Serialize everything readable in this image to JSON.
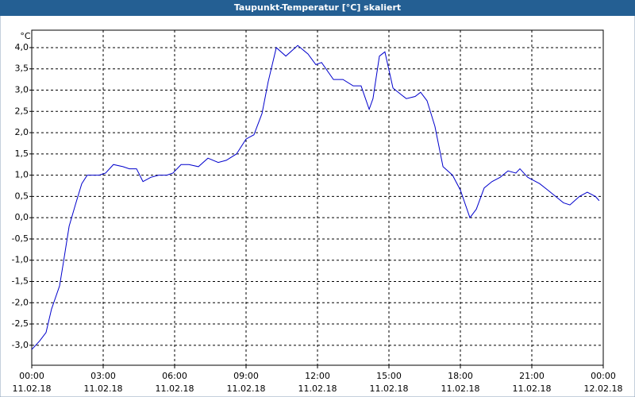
{
  "chart_data": {
    "type": "line",
    "title": "Taupunkt-Temperatur [°C] skaliert",
    "y_unit": "°C",
    "x": [
      0,
      0.33,
      0.6,
      0.83,
      1.17,
      1.33,
      1.57,
      1.83,
      2.1,
      2.33,
      2.83,
      3.1,
      3.43,
      3.83,
      4.1,
      4.4,
      4.67,
      5,
      5.33,
      5.67,
      5.93,
      6.27,
      6.6,
      7,
      7.4,
      7.83,
      8.17,
      8.6,
      9,
      9.33,
      9.67,
      9.93,
      10.27,
      10.67,
      11.17,
      11.6,
      11.93,
      12.17,
      12.67,
      13.07,
      13.5,
      13.83,
      14.17,
      14.33,
      14.6,
      14.83,
      15.17,
      15.5,
      15.73,
      16.1,
      16.33,
      16.6,
      16.93,
      17.27,
      17.67,
      18,
      18.4,
      18.67,
      19,
      19.33,
      19.67,
      20,
      20.33,
      20.5,
      20.83,
      21.33,
      21.67,
      22,
      22.33,
      22.6,
      23,
      23.33,
      23.67,
      23.83
    ],
    "series": [
      {
        "color": "#0000cc",
        "values": [
          -3.1,
          -2.9,
          -2.7,
          -2.15,
          -1.6,
          -1.05,
          -0.2,
          0.3,
          0.8,
          1.0,
          1.0,
          1.05,
          1.25,
          1.2,
          1.15,
          1.15,
          0.85,
          0.95,
          1.0,
          1.0,
          1.05,
          1.25,
          1.25,
          1.2,
          1.4,
          1.3,
          1.35,
          1.5,
          1.85,
          1.95,
          2.45,
          3.2,
          4.0,
          3.8,
          4.05,
          3.85,
          3.6,
          3.65,
          3.25,
          3.25,
          3.1,
          3.1,
          2.55,
          2.8,
          3.8,
          3.9,
          3.05,
          2.9,
          2.8,
          2.85,
          2.95,
          2.75,
          2.15,
          1.2,
          1.0,
          0.65,
          0.0,
          0.2,
          0.7,
          0.85,
          0.95,
          1.1,
          1.05,
          1.15,
          0.95,
          0.8,
          0.65,
          0.5,
          0.35,
          0.3,
          0.5,
          0.6,
          0.5,
          0.4
        ]
      }
    ],
    "xlim": [
      0,
      24
    ],
    "xticks": [
      {
        "value": 0,
        "label": "00:00",
        "date": "11.02.18"
      },
      {
        "value": 3,
        "label": "03:00",
        "date": "11.02.18"
      },
      {
        "value": 6,
        "label": "06:00",
        "date": "11.02.18"
      },
      {
        "value": 9,
        "label": "09:00",
        "date": "11.02.18"
      },
      {
        "value": 12,
        "label": "12:00",
        "date": "11.02.18"
      },
      {
        "value": 15,
        "label": "15:00",
        "date": "11.02.18"
      },
      {
        "value": 18,
        "label": "18:00",
        "date": "11.02.18"
      },
      {
        "value": 21,
        "label": "21:00",
        "date": "11.02.18"
      },
      {
        "value": 24,
        "label": "00:00",
        "date": "12.02.18"
      }
    ],
    "ylim": [
      -3.47,
      4.41
    ],
    "yticks": [
      {
        "value": -3,
        "label": "-3,0"
      },
      {
        "value": -2.5,
        "label": "-2,5"
      },
      {
        "value": -2,
        "label": "-2,0"
      },
      {
        "value": -1.5,
        "label": "-1,5"
      },
      {
        "value": -1,
        "label": "-1,0"
      },
      {
        "value": -0.5,
        "label": "-0,5"
      },
      {
        "value": 0,
        "label": "0,0"
      },
      {
        "value": 0.5,
        "label": "0,5"
      },
      {
        "value": 1,
        "label": "1,0"
      },
      {
        "value": 1.5,
        "label": "1,5"
      },
      {
        "value": 2,
        "label": "2,0"
      },
      {
        "value": 2.5,
        "label": "2,5"
      },
      {
        "value": 3,
        "label": "3,0"
      },
      {
        "value": 3.5,
        "label": "3,5"
      },
      {
        "value": 4,
        "label": "4,0"
      }
    ],
    "grid": true
  }
}
